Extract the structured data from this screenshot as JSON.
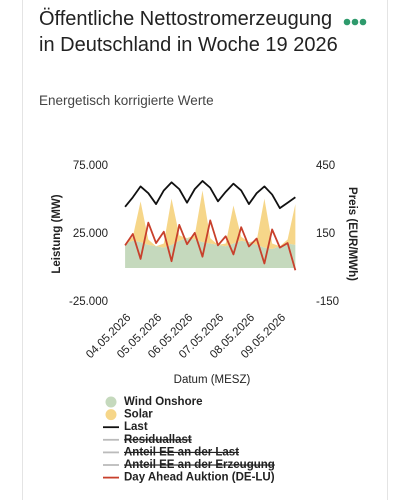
{
  "chart_data": {
    "type": "area",
    "title": "Öffentliche Nettostromerzeugung in Deutschland in Woche 19 2026",
    "subtitle": "Energetisch korrigierte Werte",
    "xlabel": "Datum (MESZ)",
    "ylabel": "Leistung (MW)",
    "y2label": "Preis (EUR/MWh)",
    "x": [
      0,
      0.25,
      0.5,
      0.75,
      1,
      1.25,
      1.5,
      1.75,
      2,
      2.25,
      2.5,
      2.75,
      3,
      3.25,
      3.5,
      3.75,
      4,
      4.25,
      4.5,
      4.75,
      5,
      5.25,
      5.5
    ],
    "xlim": [
      -0.1,
      5.65
    ],
    "xticks": [
      {
        "value": 0,
        "label": "04.05.2026"
      },
      {
        "value": 1,
        "label": "05.05.2026"
      },
      {
        "value": 2,
        "label": "06.05.2026"
      },
      {
        "value": 3,
        "label": "07.05.2026"
      },
      {
        "value": 4,
        "label": "08.05.2026"
      },
      {
        "value": 5,
        "label": "09.05.2026"
      }
    ],
    "ylim": [
      -25000,
      75000
    ],
    "yticks": [
      {
        "value": -25000,
        "label": "-25.000"
      },
      {
        "value": 25000,
        "label": "25.000"
      },
      {
        "value": 75000,
        "label": "75.000"
      }
    ],
    "y2lim": [
      -150,
      450
    ],
    "y2ticks": [
      -150,
      150,
      450
    ],
    "series": [
      {
        "name": "Wind Onshore",
        "color": "#c5d9bd",
        "kind": "area",
        "visible": true,
        "values": [
          18000,
          20000,
          19000,
          17000,
          16000,
          15000,
          17000,
          20000,
          22000,
          21000,
          19000,
          18000,
          17000,
          16000,
          18000,
          20000,
          19000,
          17000,
          15000,
          14000,
          16000,
          18000,
          17000
        ]
      },
      {
        "name": "Solar",
        "color": "#f6d689",
        "kind": "area",
        "stacked": true,
        "visible": true,
        "values": [
          0,
          3000,
          30000,
          4000,
          0,
          3000,
          34000,
          4000,
          0,
          3000,
          38000,
          4000,
          0,
          2000,
          28000,
          3000,
          0,
          3000,
          36000,
          4000,
          0,
          3000,
          30000
        ]
      },
      {
        "name": "Last",
        "color": "#111111",
        "kind": "line",
        "visible": true,
        "values": [
          45000,
          52000,
          60000,
          55000,
          47000,
          57000,
          63000,
          58000,
          48000,
          58000,
          64000,
          59000,
          49000,
          56000,
          62000,
          57000,
          47000,
          55000,
          60000,
          54000,
          44000,
          48000,
          52000
        ]
      },
      {
        "name": "Residuallast",
        "color": "#999999",
        "kind": "line",
        "visible": false
      },
      {
        "name": "Anteil EE an der Last",
        "color": "#999999",
        "kind": "line",
        "visible": false
      },
      {
        "name": "Anteil EE an der Erzeugung",
        "color": "#999999",
        "kind": "line",
        "visible": false
      },
      {
        "name": "Day Ahead Auktion (DE-LU)",
        "color": "#c8402c",
        "kind": "line",
        "axis": "y2",
        "visible": true,
        "values": [
          100,
          150,
          40,
          200,
          110,
          160,
          30,
          190,
          105,
          155,
          50,
          210,
          100,
          140,
          60,
          180,
          95,
          130,
          20,
          170,
          90,
          110,
          -10
        ]
      }
    ],
    "grid": false
  }
}
